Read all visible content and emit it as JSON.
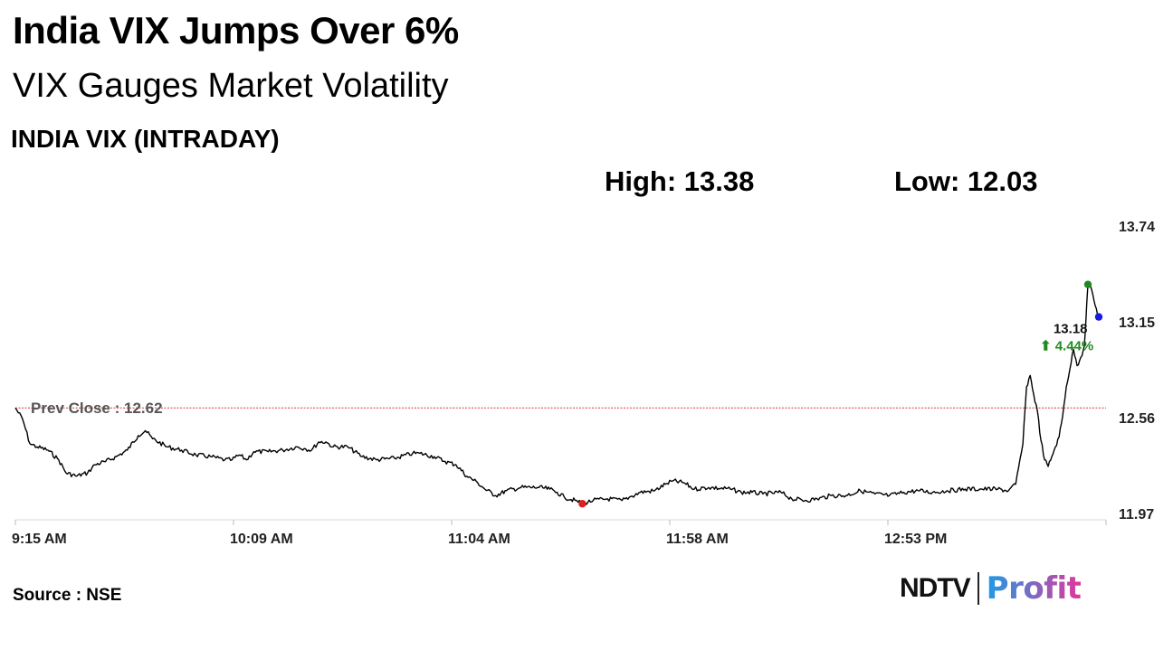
{
  "header": {
    "title": "India VIX Jumps Over 6%",
    "subtitle": "VIX Gauges Market Volatility",
    "chart_label": "INDIA VIX (INTRADAY)"
  },
  "stats": {
    "high": "High: 13.38",
    "low": "Low: 12.03"
  },
  "footer": {
    "source": "Source : NSE"
  },
  "brand": {
    "part1": "NDTV",
    "part2": "Profit",
    "colors": {
      "ndtv": "#111111",
      "profit_start": "#1e9be6",
      "profit_end": "#e0379b"
    }
  },
  "chart_data": {
    "type": "line",
    "title": "INDIA VIX (INTRADAY)",
    "xlabel": "",
    "ylabel": "",
    "x_ticks": [
      "9:15 AM",
      "10:09 AM",
      "11:04 AM",
      "11:58 AM",
      "12:53 PM"
    ],
    "y_ticks": [
      13.74,
      13.15,
      12.56,
      11.97
    ],
    "ylim": [
      11.97,
      13.74
    ],
    "x_range_minutes": [
      0,
      298
    ],
    "grid": false,
    "series": [
      {
        "color": "#000000",
        "points": [
          [
            0,
            12.62
          ],
          [
            2,
            12.55
          ],
          [
            4,
            12.4
          ],
          [
            6,
            12.38
          ],
          [
            9,
            12.36
          ],
          [
            12,
            12.3
          ],
          [
            14,
            12.22
          ],
          [
            17,
            12.2
          ],
          [
            20,
            12.22
          ],
          [
            22,
            12.27
          ],
          [
            25,
            12.29
          ],
          [
            28,
            12.32
          ],
          [
            31,
            12.36
          ],
          [
            34,
            12.45
          ],
          [
            36,
            12.48
          ],
          [
            38,
            12.43
          ],
          [
            42,
            12.38
          ],
          [
            46,
            12.36
          ],
          [
            50,
            12.33
          ],
          [
            54,
            12.32
          ],
          [
            58,
            12.3
          ],
          [
            60,
            12.3
          ],
          [
            62,
            12.33
          ],
          [
            64,
            12.3
          ],
          [
            66,
            12.35
          ],
          [
            70,
            12.35
          ],
          [
            74,
            12.36
          ],
          [
            78,
            12.38
          ],
          [
            80,
            12.37
          ],
          [
            82,
            12.36
          ],
          [
            84,
            12.41
          ],
          [
            86,
            12.41
          ],
          [
            88,
            12.38
          ],
          [
            92,
            12.38
          ],
          [
            96,
            12.32
          ],
          [
            100,
            12.3
          ],
          [
            105,
            12.31
          ],
          [
            110,
            12.34
          ],
          [
            112,
            12.34
          ],
          [
            116,
            12.32
          ],
          [
            119,
            12.29
          ],
          [
            122,
            12.27
          ],
          [
            125,
            12.2
          ],
          [
            128,
            12.16
          ],
          [
            130,
            12.12
          ],
          [
            133,
            12.08
          ],
          [
            136,
            12.11
          ],
          [
            140,
            12.13
          ],
          [
            145,
            12.13
          ],
          [
            148,
            12.12
          ],
          [
            150,
            12.1
          ],
          [
            152,
            12.07
          ],
          [
            155,
            12.05
          ],
          [
            157,
            12.03
          ],
          [
            160,
            12.05
          ],
          [
            164,
            12.06
          ],
          [
            168,
            12.05
          ],
          [
            170,
            12.07
          ],
          [
            173,
            12.1
          ],
          [
            177,
            12.11
          ],
          [
            180,
            12.15
          ],
          [
            182,
            12.17
          ],
          [
            185,
            12.16
          ],
          [
            188,
            12.12
          ],
          [
            192,
            12.13
          ],
          [
            198,
            12.12
          ],
          [
            201,
            12.1
          ],
          [
            204,
            12.1
          ],
          [
            207,
            12.09
          ],
          [
            212,
            12.1
          ],
          [
            215,
            12.06
          ],
          [
            219,
            12.05
          ],
          [
            222,
            12.06
          ],
          [
            226,
            12.08
          ],
          [
            230,
            12.08
          ],
          [
            234,
            12.11
          ],
          [
            238,
            12.09
          ],
          [
            242,
            12.08
          ],
          [
            246,
            12.1
          ],
          [
            250,
            12.11
          ],
          [
            254,
            12.1
          ],
          [
            258,
            12.11
          ],
          [
            263,
            12.12
          ],
          [
            267,
            12.12
          ],
          [
            272,
            12.12
          ],
          [
            275,
            12.11
          ],
          [
            277,
            12.15
          ],
          [
            279,
            12.4
          ],
          [
            280,
            12.75
          ],
          [
            281,
            12.82
          ],
          [
            282,
            12.7
          ],
          [
            283,
            12.6
          ],
          [
            284,
            12.42
          ],
          [
            285,
            12.3
          ],
          [
            286,
            12.26
          ],
          [
            287,
            12.32
          ],
          [
            288,
            12.38
          ],
          [
            289,
            12.44
          ],
          [
            290,
            12.57
          ],
          [
            291,
            12.75
          ],
          [
            292,
            12.86
          ],
          [
            293,
            12.98
          ],
          [
            294,
            12.88
          ],
          [
            295,
            12.93
          ],
          [
            296,
            13.0
          ],
          [
            297,
            13.38
          ],
          [
            298,
            13.35
          ],
          [
            299,
            13.25
          ],
          [
            300,
            13.18
          ]
        ]
      }
    ],
    "reference_line": {
      "label": "Prev Close : 12.62",
      "value": 12.62,
      "color": "#d23c3c"
    },
    "markers": [
      {
        "name": "low",
        "x": 157,
        "value": 12.03,
        "color": "#e02020"
      },
      {
        "name": "high",
        "x": 297,
        "value": 13.38,
        "color": "#1f8a1f"
      },
      {
        "name": "last",
        "x": 300,
        "value": 13.18,
        "color": "#1a1adb"
      }
    ],
    "last_value_label": "13.18",
    "change_label": "⬆ 4.44%",
    "change_color": "#1f8a1f"
  }
}
